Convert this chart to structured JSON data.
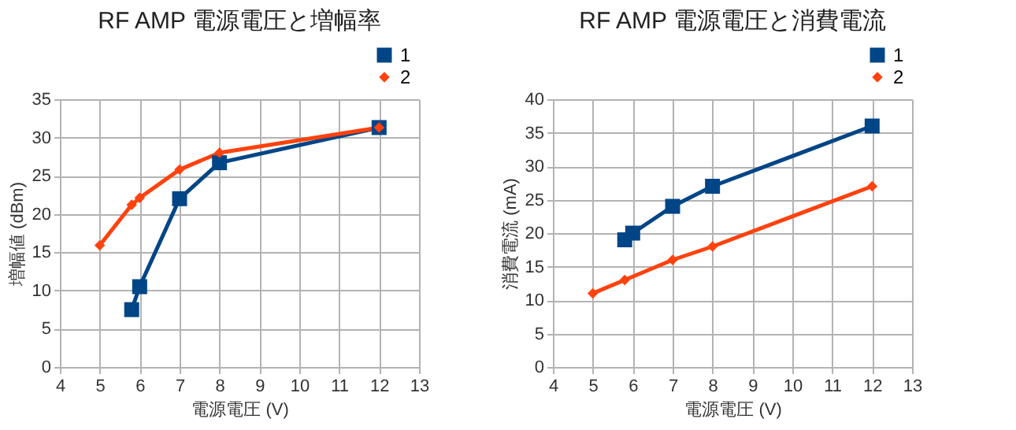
{
  "chart_data": [
    {
      "type": "line",
      "title": "RF AMP  電源電圧と増幅率",
      "xlabel": "電源電圧 (V)",
      "ylabel": "増幅値 (dBm)",
      "xlim": [
        4,
        13
      ],
      "xticks": [
        4,
        5,
        6,
        7,
        8,
        9,
        10,
        11,
        12,
        13
      ],
      "ylim": [
        0,
        35
      ],
      "yticks": [
        0,
        5,
        10,
        15,
        20,
        25,
        30,
        35
      ],
      "grid": true,
      "legend": "top right",
      "line_style": "solid",
      "series": [
        {
          "name": "1",
          "color": "#004586",
          "marker": "square",
          "x": [
            5.8,
            6,
            7,
            8,
            12
          ],
          "values": [
            7.5,
            10.5,
            22,
            26.7,
            31.3
          ]
        },
        {
          "name": "2",
          "color": "#ff420e",
          "marker": "diamond",
          "x": [
            5,
            5.8,
            6,
            7,
            8,
            12
          ],
          "values": [
            15.9,
            21.2,
            22.1,
            25.8,
            28,
            31.3
          ]
        }
      ]
    },
    {
      "type": "line",
      "title": "RF AMP  電源電圧と消費電流",
      "xlabel": "電源電圧 (V)",
      "ylabel": "消費電流 (mA)",
      "xlim": [
        4,
        13
      ],
      "xticks": [
        4,
        5,
        6,
        7,
        8,
        9,
        10,
        11,
        12,
        13
      ],
      "ylim": [
        0,
        40
      ],
      "yticks": [
        0,
        5,
        10,
        15,
        20,
        25,
        30,
        35,
        40
      ],
      "grid": true,
      "legend": "top right",
      "line_style": "solid",
      "series": [
        {
          "name": "1",
          "color": "#004586",
          "marker": "square",
          "x": [
            5.8,
            6,
            7,
            8,
            12
          ],
          "values": [
            19,
            20,
            24,
            27,
            36
          ]
        },
        {
          "name": "2",
          "color": "#ff420e",
          "marker": "diamond",
          "x": [
            5,
            5.8,
            7,
            8,
            12
          ],
          "values": [
            11,
            13,
            16,
            18,
            27
          ]
        }
      ]
    }
  ]
}
